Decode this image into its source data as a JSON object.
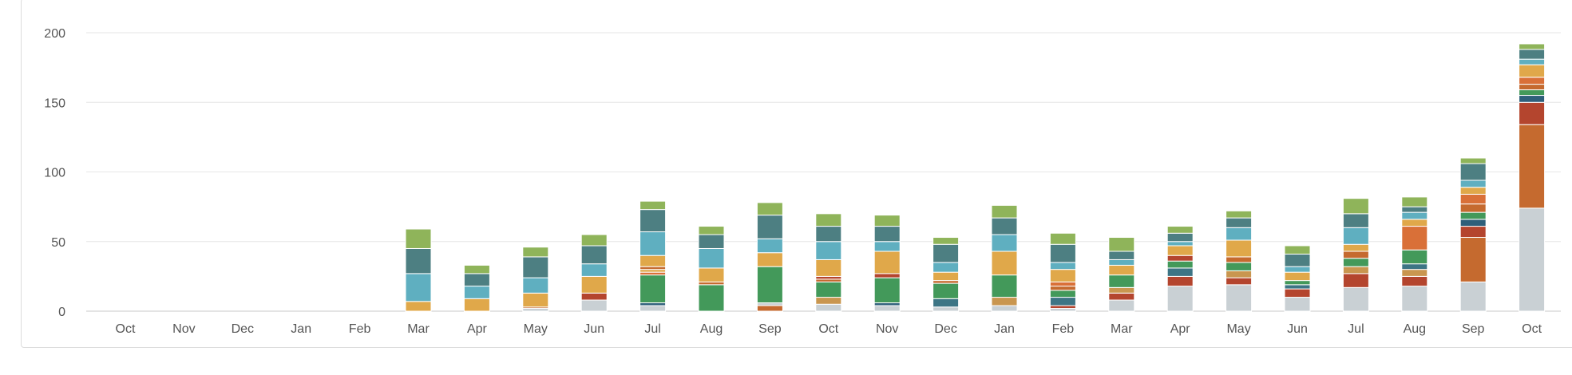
{
  "chart_data": {
    "type": "bar",
    "stacked": true,
    "title": "",
    "xlabel": "",
    "ylabel": "",
    "ylim": [
      0,
      200
    ],
    "yticks": [
      0,
      50,
      100,
      150,
      200
    ],
    "grid": true,
    "legend": "none",
    "categories": [
      "Oct",
      "Nov",
      "Dec",
      "Jan",
      "Feb",
      "Mar",
      "Apr",
      "May",
      "Jun",
      "Jul",
      "Aug",
      "Sep",
      "Oct",
      "Nov",
      "Dec",
      "Jan",
      "Feb",
      "Mar",
      "Apr",
      "May",
      "Jun",
      "Jul",
      "Aug",
      "Sep",
      "Oct"
    ],
    "stacks": [
      [],
      [],
      [],
      [],
      [],
      [
        {
          "color": "#e0a84a",
          "value": 7
        },
        {
          "color": "#5fafc0",
          "value": 20
        },
        {
          "color": "#4d7f82",
          "value": 18
        },
        {
          "color": "#8fb45a",
          "value": 14
        }
      ],
      [
        {
          "color": "#e0a84a",
          "value": 9
        },
        {
          "color": "#5fafc0",
          "value": 9
        },
        {
          "color": "#4d7f82",
          "value": 9
        },
        {
          "color": "#8fb45a",
          "value": 6
        }
      ],
      [
        {
          "color": "#c9d0d4",
          "value": 2
        },
        {
          "color": "#c56a2f",
          "value": 1
        },
        {
          "color": "#e0a84a",
          "value": 10
        },
        {
          "color": "#5fafc0",
          "value": 11
        },
        {
          "color": "#4d7f82",
          "value": 15
        },
        {
          "color": "#8fb45a",
          "value": 7
        }
      ],
      [
        {
          "color": "#c9d0d4",
          "value": 8
        },
        {
          "color": "#b4452e",
          "value": 5
        },
        {
          "color": "#e0a84a",
          "value": 12
        },
        {
          "color": "#5fafc0",
          "value": 9
        },
        {
          "color": "#4d7f82",
          "value": 13
        },
        {
          "color": "#8fb45a",
          "value": 8
        }
      ],
      [
        {
          "color": "#c9d0d4",
          "value": 4
        },
        {
          "color": "#2e5f7a",
          "value": 2
        },
        {
          "color": "#43995a",
          "value": 20
        },
        {
          "color": "#d97038",
          "value": 2
        },
        {
          "color": "#e0a84a",
          "value": 2
        },
        {
          "color": "#c56a2f",
          "value": 2
        },
        {
          "color": "#e0a84a",
          "value": 8
        },
        {
          "color": "#5fafc0",
          "value": 17
        },
        {
          "color": "#4d7f82",
          "value": 16
        },
        {
          "color": "#8fb45a",
          "value": 6
        }
      ],
      [
        {
          "color": "#43995a",
          "value": 19
        },
        {
          "color": "#c56a2f",
          "value": 2
        },
        {
          "color": "#e0a84a",
          "value": 10
        },
        {
          "color": "#5fafc0",
          "value": 14
        },
        {
          "color": "#4d7f82",
          "value": 10
        },
        {
          "color": "#8fb45a",
          "value": 6
        }
      ],
      [
        {
          "color": "#c56a2f",
          "value": 4
        },
        {
          "color": "#c9d0d4",
          "value": 2
        },
        {
          "color": "#43995a",
          "value": 26
        },
        {
          "color": "#e0a84a",
          "value": 10
        },
        {
          "color": "#5fafc0",
          "value": 10
        },
        {
          "color": "#4d7f82",
          "value": 17
        },
        {
          "color": "#8fb45a",
          "value": 9
        }
      ],
      [
        {
          "color": "#c9d0d4",
          "value": 5
        },
        {
          "color": "#c9964f",
          "value": 5
        },
        {
          "color": "#43995a",
          "value": 11
        },
        {
          "color": "#c56a2f",
          "value": 2
        },
        {
          "color": "#b4452e",
          "value": 2
        },
        {
          "color": "#e0a84a",
          "value": 12
        },
        {
          "color": "#5fafc0",
          "value": 13
        },
        {
          "color": "#4d7f82",
          "value": 11
        },
        {
          "color": "#8fb45a",
          "value": 9
        }
      ],
      [
        {
          "color": "#c9d0d4",
          "value": 4
        },
        {
          "color": "#2e5f7a",
          "value": 2
        },
        {
          "color": "#43995a",
          "value": 18
        },
        {
          "color": "#b4452e",
          "value": 3
        },
        {
          "color": "#e0a84a",
          "value": 16
        },
        {
          "color": "#5fafc0",
          "value": 7
        },
        {
          "color": "#4d7f82",
          "value": 11
        },
        {
          "color": "#8fb45a",
          "value": 8
        }
      ],
      [
        {
          "color": "#c9d0d4",
          "value": 3
        },
        {
          "color": "#3d7585",
          "value": 6
        },
        {
          "color": "#43995a",
          "value": 11
        },
        {
          "color": "#c56a2f",
          "value": 2
        },
        {
          "color": "#e0a84a",
          "value": 6
        },
        {
          "color": "#5fafc0",
          "value": 7
        },
        {
          "color": "#4d7f82",
          "value": 13
        },
        {
          "color": "#8fb45a",
          "value": 5
        }
      ],
      [
        {
          "color": "#c9d0d4",
          "value": 4
        },
        {
          "color": "#c9964f",
          "value": 6
        },
        {
          "color": "#43995a",
          "value": 16
        },
        {
          "color": "#e0a84a",
          "value": 17
        },
        {
          "color": "#5fafc0",
          "value": 12
        },
        {
          "color": "#4d7f82",
          "value": 12
        },
        {
          "color": "#8fb45a",
          "value": 9
        }
      ],
      [
        {
          "color": "#c9d0d4",
          "value": 2
        },
        {
          "color": "#b4452e",
          "value": 2
        },
        {
          "color": "#3d7585",
          "value": 6
        },
        {
          "color": "#43995a",
          "value": 5
        },
        {
          "color": "#c56a2f",
          "value": 3
        },
        {
          "color": "#d97038",
          "value": 3
        },
        {
          "color": "#e0a84a",
          "value": 9
        },
        {
          "color": "#5fafc0",
          "value": 5
        },
        {
          "color": "#4d7f82",
          "value": 13
        },
        {
          "color": "#8fb45a",
          "value": 8
        }
      ],
      [
        {
          "color": "#c9d0d4",
          "value": 8
        },
        {
          "color": "#b4452e",
          "value": 5
        },
        {
          "color": "#c9964f",
          "value": 4
        },
        {
          "color": "#43995a",
          "value": 9
        },
        {
          "color": "#e0a84a",
          "value": 7
        },
        {
          "color": "#5fafc0",
          "value": 4
        },
        {
          "color": "#4d7f82",
          "value": 6
        },
        {
          "color": "#8fb45a",
          "value": 10
        }
      ],
      [
        {
          "color": "#c9d0d4",
          "value": 18
        },
        {
          "color": "#b4452e",
          "value": 7
        },
        {
          "color": "#3d7585",
          "value": 6
        },
        {
          "color": "#43995a",
          "value": 5
        },
        {
          "color": "#b4452e",
          "value": 4
        },
        {
          "color": "#e0a84a",
          "value": 7
        },
        {
          "color": "#5fafc0",
          "value": 3
        },
        {
          "color": "#4d7f82",
          "value": 6
        },
        {
          "color": "#8fb45a",
          "value": 5
        }
      ],
      [
        {
          "color": "#c9d0d4",
          "value": 19
        },
        {
          "color": "#b4452e",
          "value": 5
        },
        {
          "color": "#c9964f",
          "value": 5
        },
        {
          "color": "#43995a",
          "value": 6
        },
        {
          "color": "#c56a2f",
          "value": 4
        },
        {
          "color": "#e0a84a",
          "value": 12
        },
        {
          "color": "#5fafc0",
          "value": 9
        },
        {
          "color": "#4d7f82",
          "value": 7
        },
        {
          "color": "#8fb45a",
          "value": 5
        }
      ],
      [
        {
          "color": "#c9d0d4",
          "value": 10
        },
        {
          "color": "#b4452e",
          "value": 6
        },
        {
          "color": "#3d7585",
          "value": 3
        },
        {
          "color": "#43995a",
          "value": 3
        },
        {
          "color": "#e0a84a",
          "value": 6
        },
        {
          "color": "#5fafc0",
          "value": 4
        },
        {
          "color": "#4d7f82",
          "value": 9
        },
        {
          "color": "#8fb45a",
          "value": 6
        }
      ],
      [
        {
          "color": "#c9d0d4",
          "value": 17
        },
        {
          "color": "#b4452e",
          "value": 10
        },
        {
          "color": "#c9964f",
          "value": 5
        },
        {
          "color": "#43995a",
          "value": 6
        },
        {
          "color": "#c56a2f",
          "value": 5
        },
        {
          "color": "#e0a84a",
          "value": 5
        },
        {
          "color": "#5fafc0",
          "value": 12
        },
        {
          "color": "#4d7f82",
          "value": 10
        },
        {
          "color": "#8fb45a",
          "value": 11
        }
      ],
      [
        {
          "color": "#c9d0d4",
          "value": 18
        },
        {
          "color": "#b4452e",
          "value": 7
        },
        {
          "color": "#c9964f",
          "value": 5
        },
        {
          "color": "#3d7585",
          "value": 4
        },
        {
          "color": "#43995a",
          "value": 10
        },
        {
          "color": "#d97038",
          "value": 17
        },
        {
          "color": "#e0a84a",
          "value": 5
        },
        {
          "color": "#5fafc0",
          "value": 5
        },
        {
          "color": "#4d7f82",
          "value": 4
        },
        {
          "color": "#8fb45a",
          "value": 7
        }
      ],
      [
        {
          "color": "#c9d0d4",
          "value": 21
        },
        {
          "color": "#c56a2f",
          "value": 32
        },
        {
          "color": "#b4452e",
          "value": 8
        },
        {
          "color": "#2e5f7a",
          "value": 5
        },
        {
          "color": "#43995a",
          "value": 5
        },
        {
          "color": "#c56a2f",
          "value": 6
        },
        {
          "color": "#d97038",
          "value": 7
        },
        {
          "color": "#e0a84a",
          "value": 5
        },
        {
          "color": "#5fafc0",
          "value": 5
        },
        {
          "color": "#4d7f82",
          "value": 12
        },
        {
          "color": "#8fb45a",
          "value": 4
        }
      ],
      [
        {
          "color": "#c9d0d4",
          "value": 74
        },
        {
          "color": "#c56a2f",
          "value": 60
        },
        {
          "color": "#b4452e",
          "value": 16
        },
        {
          "color": "#2e5f7a",
          "value": 5
        },
        {
          "color": "#43995a",
          "value": 4
        },
        {
          "color": "#c56a2f",
          "value": 4
        },
        {
          "color": "#d97038",
          "value": 5
        },
        {
          "color": "#e0a84a",
          "value": 9
        },
        {
          "color": "#5fafc0",
          "value": 4
        },
        {
          "color": "#4d7f82",
          "value": 7
        },
        {
          "color": "#8fb45a",
          "value": 4
        }
      ]
    ]
  }
}
